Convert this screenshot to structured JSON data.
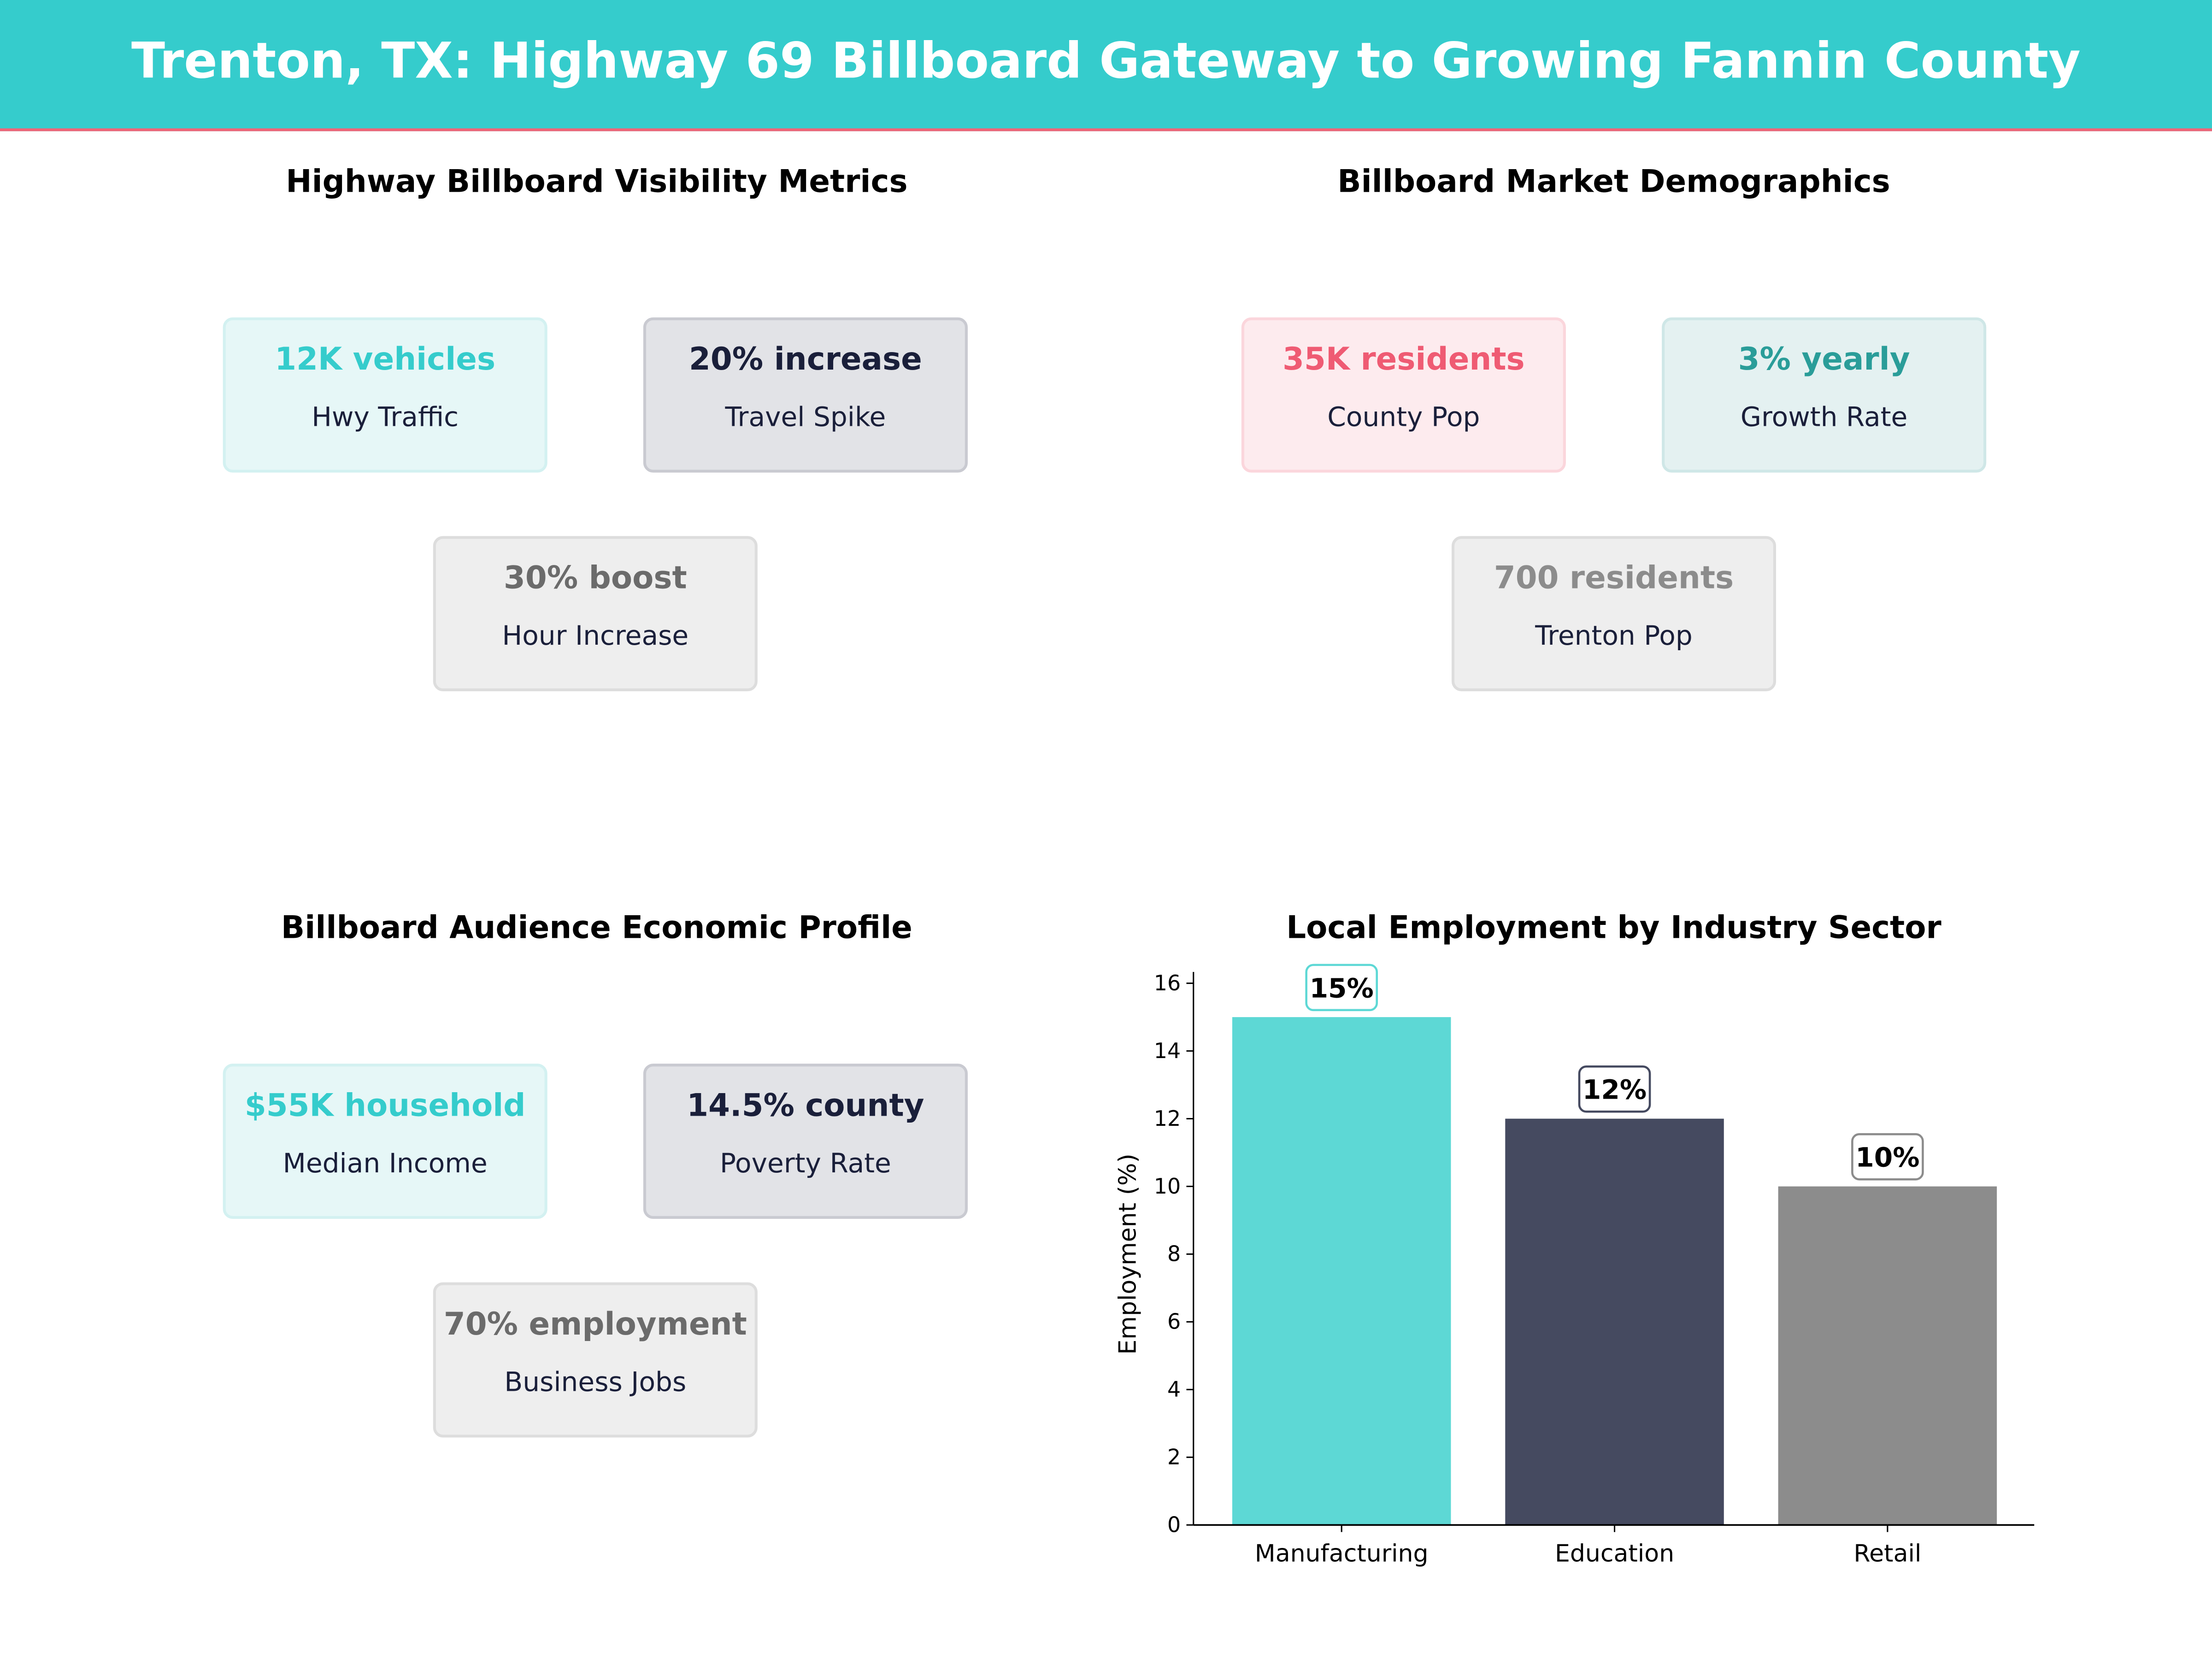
{
  "header": {
    "title": "Trenton, TX: Highway 69 Billboard Gateway to Growing Fannin County",
    "color": "#35cccc",
    "accent": "#f06477"
  },
  "panels": [
    {
      "title": "Highway Billboard Visibility Metrics",
      "cards": [
        {
          "value": "12K vehicles",
          "label": "Hwy Traffic"
        },
        {
          "value": "20% increase",
          "label": "Travel Spike"
        },
        {
          "value": "30% boost",
          "label": "Hour Increase"
        }
      ]
    },
    {
      "title": "Billboard Market Demographics",
      "cards": [
        {
          "value": "35K residents",
          "label": "County Pop"
        },
        {
          "value": "3% yearly",
          "label": "Growth Rate"
        },
        {
          "value": "700 residents",
          "label": "Trenton Pop"
        }
      ]
    },
    {
      "title": "Billboard Audience Economic Profile",
      "cards": [
        {
          "value": "$55K household",
          "label": "Median Income"
        },
        {
          "value": "14.5% county",
          "label": "Poverty Rate"
        },
        {
          "value": "70% employment",
          "label": "Business Jobs"
        }
      ]
    }
  ],
  "chart_data": {
    "type": "bar",
    "title": "Local Employment by Industry Sector",
    "ylabel": "Employment (%)",
    "xlabel": "",
    "categories": [
      "Manufacturing",
      "Education",
      "Retail"
    ],
    "values": [
      15,
      12,
      10
    ],
    "data_labels": [
      "15%",
      "12%",
      "10%"
    ],
    "colors": [
      "#5dd8d5",
      "#454a60",
      "#8c8c8c"
    ],
    "ylim": [
      0,
      16
    ],
    "yticks": [
      "0",
      "2",
      "4",
      "6",
      "8",
      "10",
      "12",
      "14",
      "16"
    ],
    "grid": false
  }
}
